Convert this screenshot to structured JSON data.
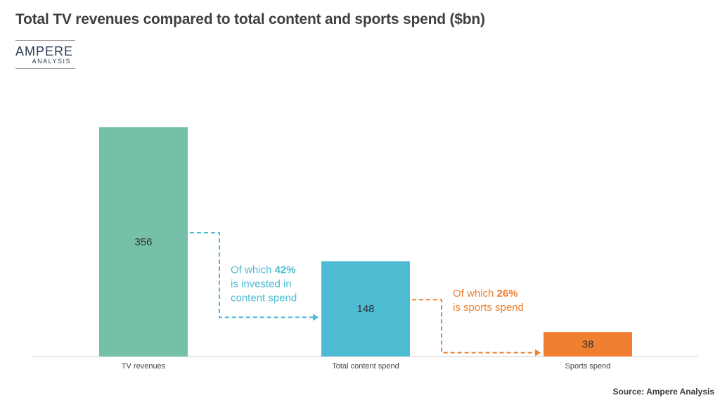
{
  "page": {
    "title": "Total TV revenues compared to total content and sports spend ($bn)",
    "logo": {
      "main": "AMPERE",
      "sub": "ANALYSIS"
    },
    "source": "Source: Ampere Analysis"
  },
  "chart_data": {
    "type": "bar",
    "categories": [
      "TV revenues",
      "Total content spend",
      "Sports spend"
    ],
    "values": [
      356,
      148,
      38
    ],
    "colors": [
      "#76bfa9",
      "#4dbcd3",
      "#f07f2f"
    ],
    "ylim": [
      0,
      356
    ],
    "grid": false,
    "annotations": [
      {
        "from": 0,
        "to": 1,
        "color": "#4dbcd3",
        "lines": [
          [
            {
              "text": "Of which ",
              "bold": false
            },
            {
              "text": "42%",
              "bold": true
            }
          ],
          [
            {
              "text": "is invested in",
              "bold": false
            }
          ],
          [
            {
              "text": "content spend",
              "bold": false
            }
          ]
        ]
      },
      {
        "from": 1,
        "to": 2,
        "color": "#f07f2f",
        "lines": [
          [
            {
              "text": "Of which ",
              "bold": false
            },
            {
              "text": "26%",
              "bold": true
            }
          ],
          [
            {
              "text": "is sports spend",
              "bold": false
            }
          ]
        ]
      }
    ]
  }
}
